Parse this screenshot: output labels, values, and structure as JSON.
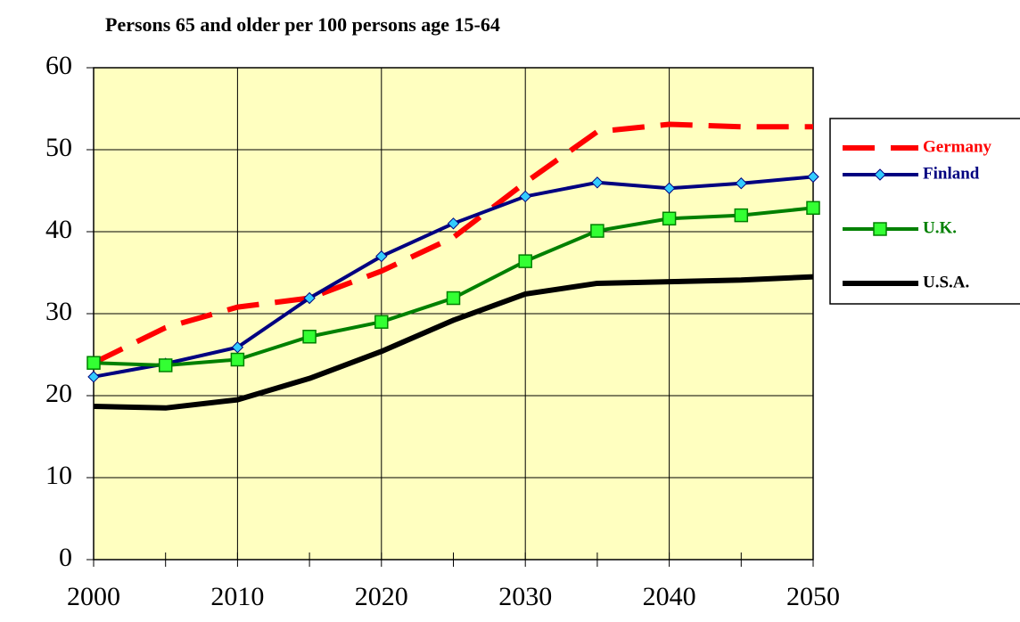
{
  "chart_data": {
    "type": "line",
    "title": "Persons 65 and older per 100 persons age 15-64",
    "x": [
      2000,
      2005,
      2010,
      2015,
      2020,
      2025,
      2030,
      2035,
      2040,
      2045,
      2050
    ],
    "series": [
      {
        "name": "Germany",
        "color": "#ff0000",
        "dash": true,
        "marker": "none",
        "values": [
          24,
          28.3,
          30.8,
          31.9,
          35.2,
          39.3,
          46,
          52.2,
          53.1,
          52.8,
          52.8
        ]
      },
      {
        "name": "Finland",
        "color": "#000080",
        "marker": "diamond",
        "marker_color": "#33ccff",
        "values": [
          22.3,
          23.9,
          25.9,
          31.9,
          37,
          41,
          44.3,
          46,
          45.3,
          45.9,
          46.7
        ]
      },
      {
        "name": "U.K.",
        "color": "#008000",
        "marker": "square",
        "marker_color": "#33ff33",
        "values": [
          24,
          23.7,
          24.4,
          27.2,
          29,
          31.9,
          36.4,
          40.1,
          41.6,
          42,
          42.9
        ]
      },
      {
        "name": "U.S.A.",
        "color": "#000000",
        "marker": "none",
        "values": [
          18.7,
          18.5,
          19.5,
          22.1,
          25.4,
          29.2,
          32.4,
          33.7,
          33.9,
          34.1,
          34.5
        ]
      }
    ],
    "xlim": [
      2000,
      2050
    ],
    "xticks": [
      2000,
      2010,
      2020,
      2030,
      2040,
      2050
    ],
    "ylim": [
      0,
      60
    ],
    "yticks": [
      0,
      10,
      20,
      30,
      40,
      50,
      60
    ],
    "grid": true,
    "legend": "right",
    "background": "#ffffc0"
  }
}
